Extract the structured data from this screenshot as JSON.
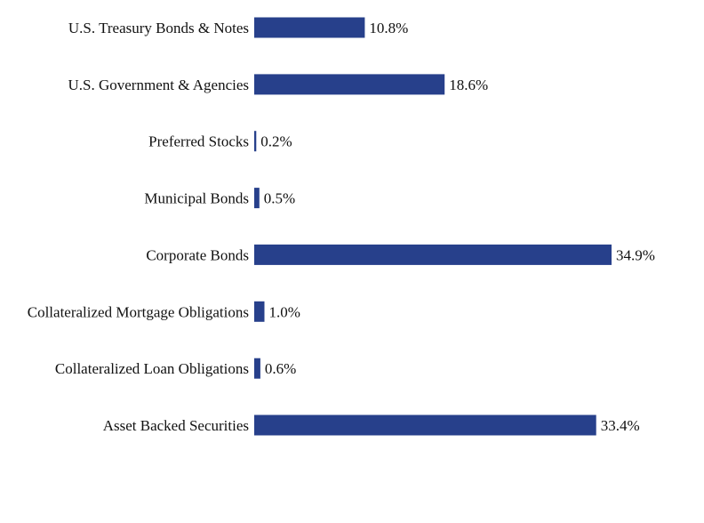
{
  "chart_data": {
    "type": "bar",
    "orientation": "horizontal",
    "categories": [
      "U.S. Treasury Bonds & Notes",
      "U.S. Government & Agencies",
      "Preferred Stocks",
      "Municipal Bonds",
      "Corporate Bonds",
      "Collateralized Mortgage Obligations",
      "Collateralized Loan Obligations",
      "Asset Backed Securities"
    ],
    "values": [
      10.8,
      18.6,
      0.2,
      0.5,
      34.9,
      1.0,
      0.6,
      33.4
    ],
    "value_labels": [
      "10.8%",
      "18.6%",
      "0.2%",
      "0.5%",
      "34.9%",
      "1.0%",
      "0.6%",
      "33.4%"
    ],
    "bar_color": "#27408b",
    "title": "",
    "xlabel": "",
    "ylabel": "",
    "xlim": [
      0,
      40
    ],
    "grid": false,
    "legend": "none"
  }
}
